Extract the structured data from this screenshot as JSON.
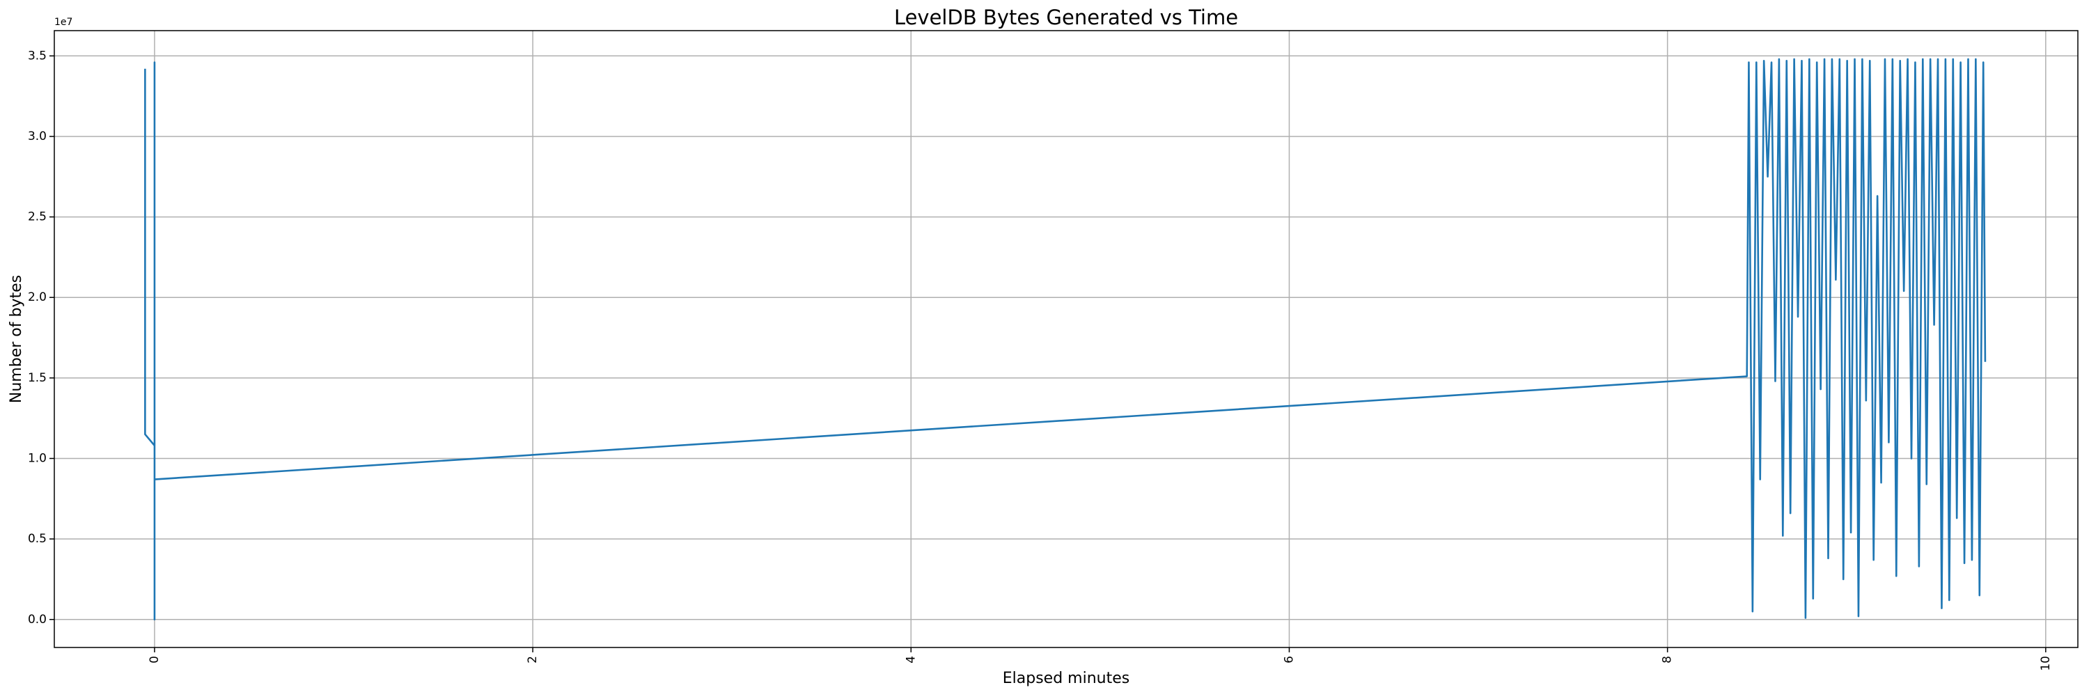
{
  "chart_data": {
    "type": "line",
    "title": "LevelDB Bytes Generated vs Time",
    "x_label": "Elapsed minutes",
    "y_label": "Number of bytes",
    "y_offset_label": "1e7",
    "color": "#1f77b4",
    "grid": true,
    "xlim": [
      -0.53,
      10.17
    ],
    "ylim": [
      -1740000,
      36570000
    ],
    "xticks": [
      0,
      2,
      4,
      6,
      8,
      10
    ],
    "yticks": [
      {
        "value": 0,
        "label": "0.0"
      },
      {
        "value": 5000000,
        "label": "0.5"
      },
      {
        "value": 10000000,
        "label": "1.0"
      },
      {
        "value": 15000000,
        "label": "1.5"
      },
      {
        "value": 20000000,
        "label": "2.0"
      },
      {
        "value": 25000000,
        "label": "2.5"
      },
      {
        "value": 30000000,
        "label": "3.0"
      },
      {
        "value": 35000000,
        "label": "3.5"
      }
    ],
    "x": [
      -0.05,
      -0.05,
      0,
      0,
      0,
      0,
      8.42,
      8.43,
      8.45,
      8.47,
      8.49,
      8.51,
      8.53,
      8.55,
      8.57,
      8.59,
      8.61,
      8.63,
      8.65,
      8.67,
      8.69,
      8.71,
      8.73,
      8.75,
      8.77,
      8.79,
      8.81,
      8.83,
      8.85,
      8.87,
      8.89,
      8.91,
      8.93,
      8.95,
      8.97,
      8.99,
      9.01,
      9.03,
      9.05,
      9.07,
      9.09,
      9.11,
      9.13,
      9.15,
      9.17,
      9.19,
      9.21,
      9.23,
      9.25,
      9.27,
      9.29,
      9.31,
      9.33,
      9.35,
      9.37,
      9.39,
      9.41,
      9.43,
      9.45,
      9.47,
      9.49,
      9.51,
      9.53,
      9.55,
      9.57,
      9.59,
      9.61,
      9.63,
      9.65,
      9.67,
      9.68
    ],
    "values": [
      34200000,
      11500000,
      10800000,
      34600000,
      0,
      8700000,
      15100000,
      34600000,
      500000,
      34600000,
      8700000,
      34700000,
      27500000,
      34600000,
      14800000,
      34800000,
      5200000,
      34700000,
      6600000,
      34800000,
      18800000,
      34700000,
      100000,
      34800000,
      1300000,
      34600000,
      14300000,
      34800000,
      3800000,
      34800000,
      21100000,
      34800000,
      2500000,
      34700000,
      5400000,
      34800000,
      200000,
      34800000,
      13600000,
      34700000,
      3700000,
      26300000,
      8500000,
      34800000,
      11000000,
      34800000,
      2700000,
      34700000,
      20400000,
      34800000,
      10000000,
      34600000,
      3300000,
      34800000,
      8400000,
      34800000,
      18300000,
      34800000,
      700000,
      34800000,
      1200000,
      34800000,
      6300000,
      34600000,
      3500000,
      34800000,
      3700000,
      34800000,
      1500000,
      34600000,
      16000000
    ]
  }
}
